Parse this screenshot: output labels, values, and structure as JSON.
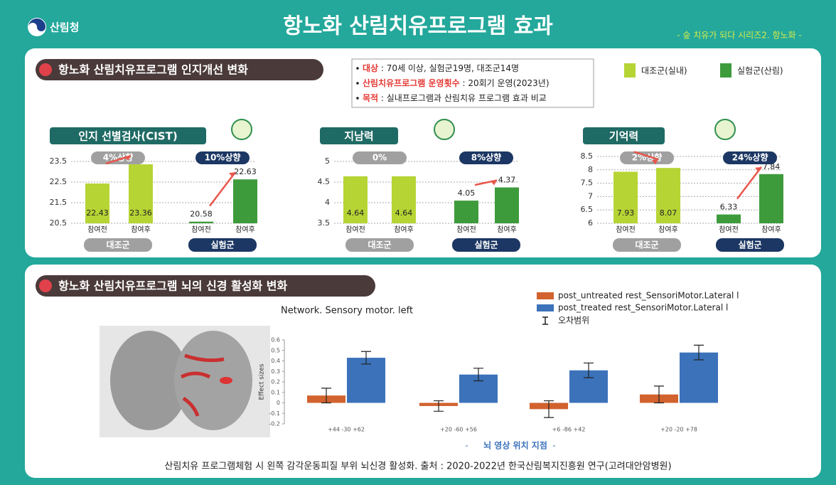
{
  "header": {
    "logo": "산림청",
    "title": "항노화 산림치유프로그램 효과",
    "subtitle": "- 숲 치유가 되다 시리즈2. 항노화 -"
  },
  "section1": {
    "heading": "항노화 산림치유프로그램 인지개선 변화",
    "info": [
      {
        "keyword": "대상",
        "text": " : 70세 이상, 실험군19명, 대조군14명"
      },
      {
        "keyword": "산림치유프로그램 운영횟수",
        "text": " : 20회기 운영(2023년)"
      },
      {
        "keyword": "목적",
        "text": " : 실내프로그램과 산림치유 프로그램 효과 비교"
      }
    ],
    "legend": [
      "대조군(실내)",
      "실험군(산림)"
    ]
  },
  "chart_data": [
    {
      "type": "bar",
      "title": "인지 선별검사(CIST)",
      "categories": [
        "참여전",
        "참여후",
        "참여전",
        "참여후"
      ],
      "values": [
        22.43,
        23.36,
        20.58,
        22.63
      ],
      "colors": [
        "#b7d435",
        "#b7d435",
        "#3e9b3c",
        "#3e9b3c"
      ],
      "groups": [
        "대조군",
        "실험군"
      ],
      "changes": [
        "4%상향",
        "10%상향"
      ],
      "ylim": [
        20.5,
        23.5
      ],
      "yticks": [
        20.5,
        21.5,
        22.5,
        23.5
      ],
      "grid": true
    },
    {
      "type": "bar",
      "title": "지남력",
      "categories": [
        "참여전",
        "참여후",
        "참여전",
        "참여후"
      ],
      "values": [
        4.64,
        4.64,
        4.05,
        4.37
      ],
      "colors": [
        "#b7d435",
        "#b7d435",
        "#3e9b3c",
        "#3e9b3c"
      ],
      "groups": [
        "대조군",
        "실험군"
      ],
      "changes": [
        "0%",
        "8%상향"
      ],
      "ylim": [
        3.5,
        5
      ],
      "yticks": [
        3.5,
        4,
        4.5,
        5
      ],
      "grid": true
    },
    {
      "type": "bar",
      "title": "기억력",
      "categories": [
        "참여전",
        "참여후",
        "참여전",
        "참여후"
      ],
      "values": [
        7.93,
        8.07,
        6.33,
        7.84
      ],
      "colors": [
        "#b7d435",
        "#b7d435",
        "#3e9b3c",
        "#3e9b3c"
      ],
      "groups": [
        "대조군",
        "실험군"
      ],
      "changes": [
        "2%상향",
        "24%상향"
      ],
      "ylim": [
        6,
        8.5
      ],
      "yticks": [
        6,
        6.5,
        7,
        7.5,
        8,
        8.5
      ],
      "grid": true
    },
    {
      "type": "grouped_bar",
      "title": "Network. Sensory motor. left",
      "ylabel": "Effect sizes",
      "xlabel": "뇌 영상 위치 지점",
      "error_label": "오차범위",
      "categories": [
        "+44 -30 +62",
        "+20 -60 +56",
        "+6 -86 +42",
        "+20 -20 +78"
      ],
      "series": [
        {
          "name": "post_untreated rest_SensoriMotor.Lateral l",
          "color": "#d2622e",
          "values": [
            0.07,
            -0.03,
            -0.06,
            0.08
          ],
          "errors": [
            0.07,
            0.05,
            0.08,
            0.08
          ]
        },
        {
          "name": "post_treated rest_SensoriMotor.Lateral l",
          "color": "#3b72ba",
          "values": [
            0.43,
            0.27,
            0.31,
            0.48
          ],
          "errors": [
            0.06,
            0.06,
            0.07,
            0.07
          ]
        }
      ],
      "ylim": [
        -0.2,
        0.6
      ],
      "yticks": [
        -0.2,
        -0.1,
        0,
        0.1,
        0.2,
        0.3,
        0.4,
        0.5,
        0.6
      ]
    }
  ],
  "section2": {
    "heading": "항노화 산림치유프로그램 뇌의 신경 활성화 변화",
    "caption": "산림치유 프로그램체험 시 왼쪽 감각운동피질 부위 뇌신경 활성화. 출처 : 2020-2022년 한국산림복지진흥원 연구(고려대안암병원)"
  }
}
